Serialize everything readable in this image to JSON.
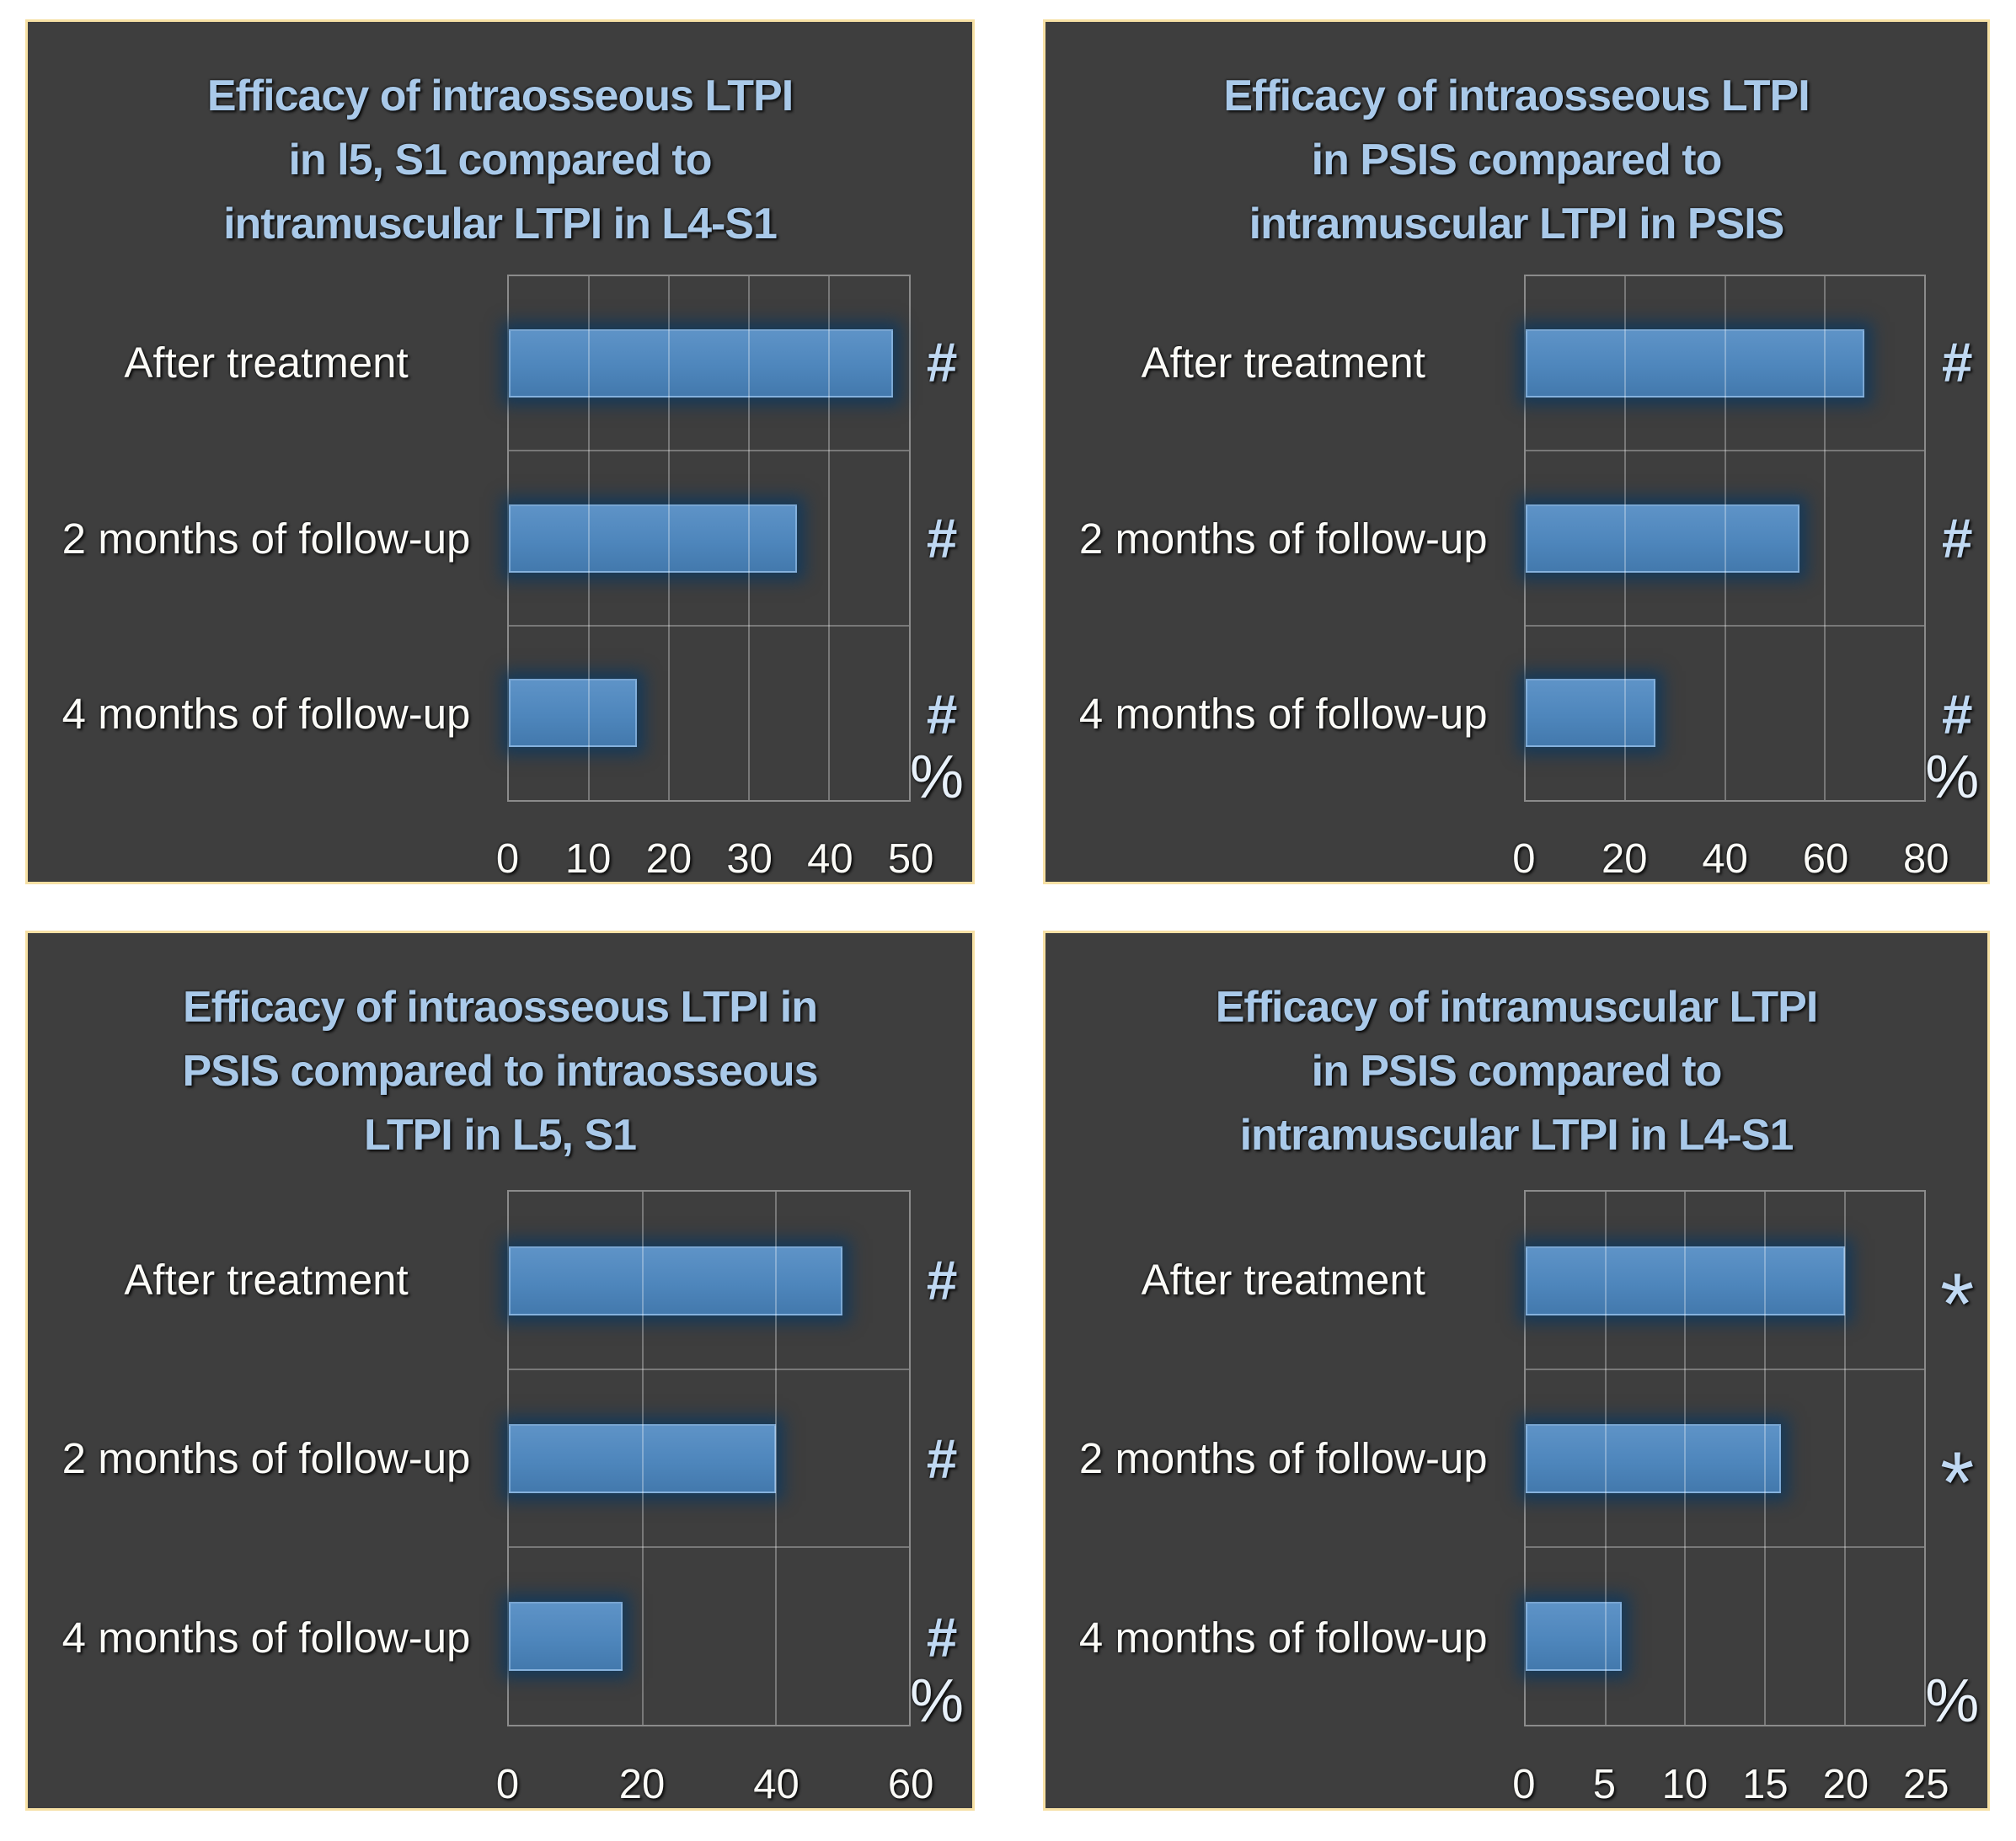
{
  "styles": {
    "page_bg": "#FFFFFF",
    "panel_bg": "#3E3E3E",
    "panel_border": "#F6E0A4",
    "title_color": "#A9C9E9",
    "label_color": "#FBFBF7",
    "symbol_color": "#BFD8F2",
    "unit_color": "#E8F1FA",
    "bar_fill": "#4E86BC",
    "bar_glow": "#0E385E",
    "grid_color": "#8C8C8C"
  },
  "figure": {
    "layout": "2x2",
    "panel_count": 4
  },
  "chart_data": [
    {
      "type": "bar",
      "orientation": "horizontal",
      "title": "Efficacy of intraosseous LTPI in l5, S1 compared to intramuscular LTPI in L4-S1",
      "title_lines": [
        "Efficacy of intraosseous LTPI",
        "in l5, S1 compared to",
        "intramuscular LTPI in L4-S1"
      ],
      "categories": [
        "After treatment",
        "2 months of follow-up",
        "4 months of follow-up"
      ],
      "values": [
        48,
        36,
        16
      ],
      "annotations": [
        "#",
        "#",
        "#"
      ],
      "x_ticks": [
        0,
        10,
        20,
        30,
        40,
        50
      ],
      "xlim": [
        0,
        50
      ],
      "x_unit": "%",
      "grid": true,
      "legend": "none"
    },
    {
      "type": "bar",
      "orientation": "horizontal",
      "title": "Efficacy of intraosseous LTPI in PSIS compared to intramuscular LTPI in PSIS",
      "title_lines": [
        "Efficacy of intraosseous LTPI",
        "in PSIS compared to",
        "intramuscular LTPI in PSIS"
      ],
      "categories": [
        "After treatment",
        "2 months of follow-up",
        "4 months of follow-up"
      ],
      "values": [
        68,
        55,
        26
      ],
      "annotations": [
        "#",
        "#",
        "#"
      ],
      "x_ticks": [
        0,
        20,
        40,
        60,
        80
      ],
      "xlim": [
        0,
        80
      ],
      "x_unit": "%",
      "grid": true,
      "legend": "none"
    },
    {
      "type": "bar",
      "orientation": "horizontal",
      "title": "Efficacy of intraosseous LTPI in PSIS compared to intraosseous LTPI  in L5, S1",
      "title_lines": [
        "Efficacy of intraosseous LTPI in",
        "PSIS compared to intraosseous",
        "LTPI  in L5, S1"
      ],
      "categories": [
        "After treatment",
        "2 months of follow-up",
        "4 months of follow-up"
      ],
      "values": [
        50,
        40,
        17
      ],
      "annotations": [
        "#",
        "#",
        "#"
      ],
      "x_ticks": [
        0,
        20,
        40,
        60
      ],
      "xlim": [
        0,
        60
      ],
      "x_unit": "%",
      "grid": true,
      "legend": "none"
    },
    {
      "type": "bar",
      "orientation": "horizontal",
      "title": "Efficacy of intramuscular LTPI in PSIS compared to intramuscular LTPI in L4-S1",
      "title_lines": [
        "Efficacy of intramuscular LTPI",
        "in PSIS compared to",
        "intramuscular LTPI in L4-S1"
      ],
      "categories": [
        "After treatment",
        "2 months of follow-up",
        "4 months of follow-up"
      ],
      "values": [
        20,
        16,
        6
      ],
      "annotations": [
        "*",
        "*",
        ""
      ],
      "x_ticks": [
        0,
        5,
        10,
        15,
        20,
        25
      ],
      "xlim": [
        0,
        25
      ],
      "x_unit": "%",
      "grid": true,
      "legend": "none"
    }
  ]
}
